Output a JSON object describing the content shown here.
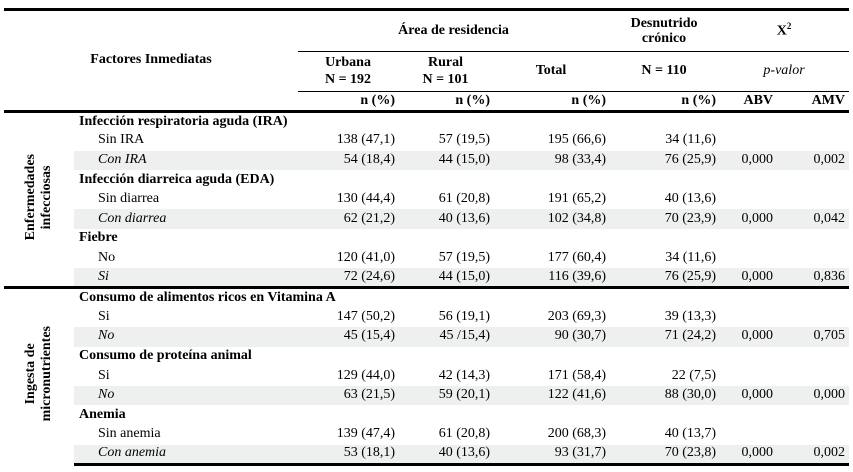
{
  "table": {
    "header": {
      "factors_label": "Factores Inmediatas",
      "area_group": "Área de residencia",
      "desnutrido_group": "Desnutrido\ncrónico",
      "chi_base": "X",
      "chi_sup": "2",
      "urbana": "Urbana\nN = 192",
      "rural": "Rural\nN = 101",
      "total": "Total",
      "n110": "N = 110",
      "pvalor": "p-valor",
      "npct": "n (%)",
      "abv": "ABV",
      "amv": "AMV"
    },
    "sections": [
      {
        "side_label": "Enfermedades\ninfecciosas",
        "groups": [
          {
            "title": "Infección respiratoria aguda (IRA)",
            "rows": [
              {
                "label": "Sin IRA",
                "italic": false,
                "shaded": false,
                "values": [
                  "138 (47,1)",
                  "57 (19,5)",
                  "195 (66,6)",
                  "34 (11,6)",
                  "",
                  ""
                ]
              },
              {
                "label": "Con IRA",
                "italic": true,
                "shaded": true,
                "values": [
                  "54 (18,4)",
                  "44 (15,0)",
                  "98 (33,4)",
                  "76 (25,9)",
                  "0,000",
                  "0,002"
                ]
              }
            ]
          },
          {
            "title": "Infección diarreica aguda (EDA)",
            "rows": [
              {
                "label": "Sin diarrea",
                "italic": false,
                "shaded": false,
                "values": [
                  "130 (44,4)",
                  "61 (20,8)",
                  "191 (65,2)",
                  "40 (13,6)",
                  "",
                  ""
                ]
              },
              {
                "label": "Con diarrea",
                "italic": true,
                "shaded": true,
                "values": [
                  "62 (21,2)",
                  "40 (13,6)",
                  "102 (34,8)",
                  "70 (23,9)",
                  "0,000",
                  "0,042"
                ]
              }
            ]
          },
          {
            "title": "Fiebre",
            "rows": [
              {
                "label": "No",
                "italic": false,
                "shaded": false,
                "values": [
                  "120 (41,0)",
                  "57 (19,5)",
                  "177 (60,4)",
                  "34 (11,6)",
                  "",
                  ""
                ]
              },
              {
                "label": "Si",
                "italic": true,
                "shaded": true,
                "values": [
                  "72 (24,6)",
                  "44 (15,0)",
                  "116 (39,6)",
                  "76 (25,9)",
                  "0,000",
                  "0,836"
                ]
              }
            ]
          }
        ]
      },
      {
        "side_label": "Ingesta de\nmicronutrientes",
        "groups": [
          {
            "title": "Consumo de alimentos ricos en Vitamina A",
            "rows": [
              {
                "label": "Si",
                "italic": false,
                "shaded": false,
                "values": [
                  "147 (50,2)",
                  "56 (19,1)",
                  "203 (69,3)",
                  "39 (13,3)",
                  "",
                  ""
                ]
              },
              {
                "label": "No",
                "italic": true,
                "shaded": true,
                "values": [
                  "45 (15,4)",
                  "45 /15,4)",
                  "90 (30,7)",
                  "71 (24,2)",
                  "0,000",
                  "0,705"
                ]
              }
            ]
          },
          {
            "title": "Consumo de proteína animal",
            "rows": [
              {
                "label": "Si",
                "italic": false,
                "shaded": false,
                "values": [
                  "129 (44,0)",
                  "42 (14,3)",
                  "171 (58,4)",
                  "22 (7,5)",
                  "",
                  ""
                ]
              },
              {
                "label": "No",
                "italic": true,
                "shaded": true,
                "values": [
                  "63 (21,5)",
                  "59 (20,1)",
                  "122 (41,6)",
                  "88 (30,0)",
                  "0,000",
                  "0,000"
                ]
              }
            ]
          },
          {
            "title": "Anemia",
            "rows": [
              {
                "label": "Sin anemia",
                "italic": false,
                "shaded": false,
                "values": [
                  "139 (47,4)",
                  "61 (20,8)",
                  "200 (68,3)",
                  "40 (13,7)",
                  "",
                  ""
                ]
              },
              {
                "label": "Con anemia",
                "italic": true,
                "shaded": true,
                "values": [
                  "53 (18,1)",
                  "40 (13,6)",
                  "93 (31,7)",
                  "70 (23,8)",
                  "0,000",
                  "0,002"
                ]
              }
            ]
          }
        ]
      }
    ]
  }
}
